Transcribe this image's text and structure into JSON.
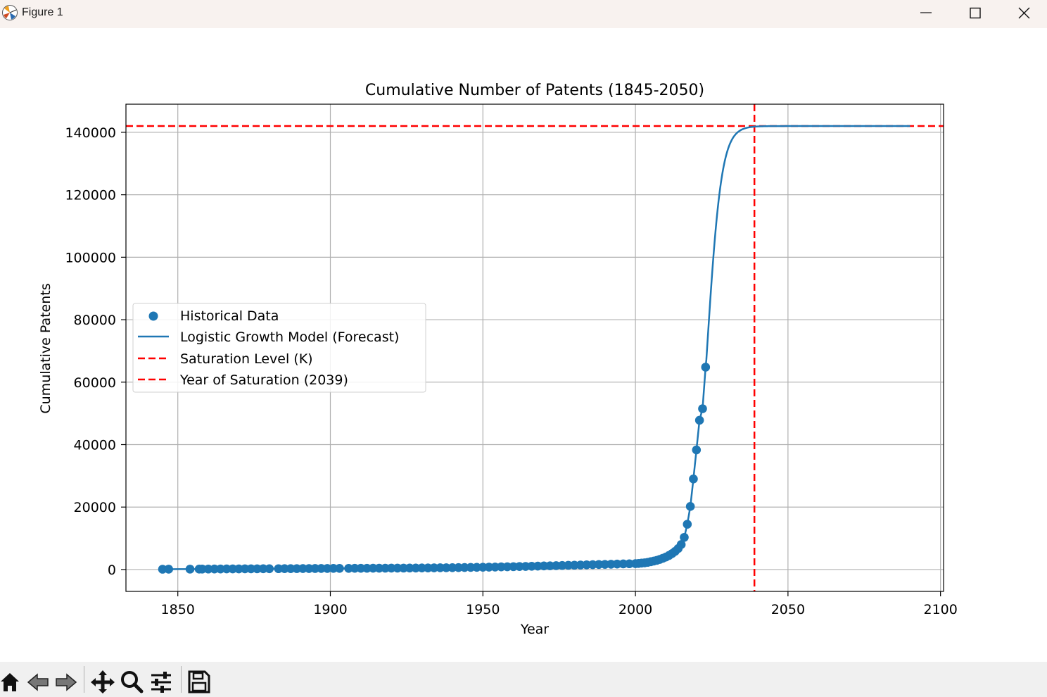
{
  "window": {
    "title": "Figure 1",
    "controls": [
      "minimize",
      "maximize",
      "close"
    ]
  },
  "toolbar": {
    "buttons": [
      {
        "name": "home",
        "icon": "home-icon"
      },
      {
        "name": "back",
        "icon": "back-arrow-icon"
      },
      {
        "name": "forward",
        "icon": "forward-arrow-icon"
      },
      {
        "name": "pan",
        "icon": "move-icon"
      },
      {
        "name": "zoom",
        "icon": "zoom-icon"
      },
      {
        "name": "configure-subplots",
        "icon": "sliders-icon"
      },
      {
        "name": "save",
        "icon": "save-icon"
      }
    ]
  },
  "colors": {
    "series": "#1f77b4",
    "reference_lines": "#ff0000",
    "grid": "#b0b0b0"
  },
  "chart_data": {
    "type": "line",
    "title": "Cumulative Number of Patents (1845-2050)",
    "xlabel": "Year",
    "ylabel": "Cumulative Patents",
    "xlim": [
      1833,
      2101
    ],
    "ylim": [
      -7000,
      149000
    ],
    "xticks": [
      1850,
      1900,
      1950,
      2000,
      2050,
      2100
    ],
    "yticks": [
      0,
      20000,
      40000,
      60000,
      80000,
      100000,
      120000,
      140000
    ],
    "grid": true,
    "legend_position": "center-left",
    "legend": [
      {
        "label": "Historical Data",
        "kind": "marker"
      },
      {
        "label": "Logistic Growth Model (Forecast)",
        "kind": "line"
      },
      {
        "label": "Saturation Level (K)",
        "kind": "dashed"
      },
      {
        "label": "Year of Saturation (2039)",
        "kind": "dashed"
      }
    ],
    "series": [
      {
        "name": "Historical Data",
        "type": "scatter",
        "x": [
          1845,
          1847,
          1854,
          1857,
          1858,
          1860,
          1862,
          1864,
          1866,
          1868,
          1870,
          1872,
          1874,
          1876,
          1878,
          1880,
          1883,
          1885,
          1887,
          1889,
          1891,
          1893,
          1895,
          1897,
          1899,
          1901,
          1903,
          1906,
          1908,
          1910,
          1912,
          1914,
          1916,
          1918,
          1920,
          1922,
          1924,
          1926,
          1928,
          1930,
          1932,
          1934,
          1936,
          1938,
          1940,
          1942,
          1944,
          1946,
          1948,
          1950,
          1952,
          1954,
          1956,
          1958,
          1960,
          1962,
          1964,
          1966,
          1968,
          1970,
          1972,
          1974,
          1976,
          1978,
          1980,
          1982,
          1984,
          1986,
          1988,
          1990,
          1992,
          1994,
          1996,
          1998,
          2000,
          2001,
          2002,
          2003,
          2004,
          2005,
          2006,
          2007,
          2008,
          2009,
          2010,
          2011,
          2012,
          2013,
          2014,
          2015,
          2016,
          2017,
          2018,
          2019,
          2020,
          2021,
          2022,
          2023
        ],
        "y": [
          100,
          110,
          130,
          140,
          150,
          160,
          170,
          180,
          190,
          200,
          210,
          220,
          230,
          240,
          250,
          260,
          270,
          280,
          290,
          300,
          310,
          320,
          330,
          340,
          350,
          360,
          370,
          380,
          390,
          400,
          410,
          420,
          430,
          440,
          450,
          460,
          470,
          480,
          490,
          500,
          520,
          540,
          560,
          580,
          600,
          620,
          650,
          680,
          710,
          740,
          770,
          800,
          840,
          880,
          920,
          960,
          1000,
          1050,
          1100,
          1150,
          1200,
          1250,
          1300,
          1350,
          1400,
          1450,
          1500,
          1550,
          1600,
          1650,
          1700,
          1750,
          1800,
          1850,
          1900,
          1950,
          2050,
          2150,
          2300,
          2500,
          2700,
          2950,
          3250,
          3600,
          4000,
          4500,
          5100,
          5800,
          6700,
          8000,
          10300,
          14500,
          20200,
          29000,
          38300,
          47800,
          51500,
          64800
        ]
      },
      {
        "name": "Logistic Growth Model (Forecast)",
        "type": "line",
        "K": 142000,
        "midpoint_year": 2023.5,
        "growth_rate": 0.425,
        "x_range": [
          1845,
          2090
        ]
      },
      {
        "name": "Saturation Level (K)",
        "type": "hline",
        "y": 142000
      },
      {
        "name": "Year of Saturation (2039)",
        "type": "vline",
        "x": 2039
      }
    ]
  }
}
